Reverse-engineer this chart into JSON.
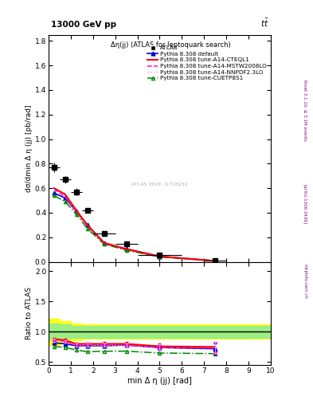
{
  "title": "13000 GeV pp",
  "inner_title": "Δη(jj) (ATLAS for leptoquark search)",
  "ylabel_main": "dσ/dmin Δ η (jj) [pb/rad]",
  "ylabel_ratio": "Ratio to ATLAS",
  "xlabel": "min Δ η (jj) [rad]",
  "right_label1": "Rivet 3.1.10; ≥ 3.1M events",
  "right_label2": "[arXiv:1306.3436]",
  "right_label3": "mcplots.cern.ch",
  "data_x": [
    0.25,
    0.75,
    1.25,
    1.75,
    2.5,
    3.5,
    5.0,
    7.5
  ],
  "data_y": [
    0.77,
    0.67,
    0.57,
    0.42,
    0.23,
    0.145,
    0.055,
    0.01
  ],
  "data_xerr": [
    0.25,
    0.25,
    0.25,
    0.25,
    0.5,
    0.5,
    1.0,
    0.5
  ],
  "data_yerr": [
    0.04,
    0.03,
    0.03,
    0.02,
    0.015,
    0.01,
    0.005,
    0.002
  ],
  "mc_x": [
    0.25,
    0.75,
    1.25,
    1.75,
    2.5,
    3.5,
    5.0,
    7.5
  ],
  "default_y": [
    0.56,
    0.52,
    0.41,
    0.3,
    0.155,
    0.105,
    0.045,
    0.008
  ],
  "cteql1_y": [
    0.6,
    0.55,
    0.42,
    0.3,
    0.155,
    0.105,
    0.045,
    0.008
  ],
  "mstw_y": [
    0.59,
    0.53,
    0.41,
    0.29,
    0.15,
    0.1,
    0.042,
    0.007
  ],
  "nnpdf_y": [
    0.59,
    0.54,
    0.41,
    0.295,
    0.152,
    0.102,
    0.043,
    0.008
  ],
  "cuetp_y": [
    0.54,
    0.49,
    0.39,
    0.27,
    0.145,
    0.095,
    0.04,
    0.007
  ],
  "ratio_default_y": [
    0.82,
    0.8,
    0.77,
    0.77,
    0.77,
    0.78,
    0.74,
    0.72
  ],
  "ratio_cteql1_y": [
    0.88,
    0.86,
    0.8,
    0.8,
    0.8,
    0.8,
    0.76,
    0.75
  ],
  "ratio_mstw_y": [
    0.86,
    0.84,
    0.78,
    0.78,
    0.78,
    0.78,
    0.74,
    0.73
  ],
  "ratio_nnpdf_y": [
    0.86,
    0.84,
    0.78,
    0.78,
    0.78,
    0.78,
    0.75,
    0.74
  ],
  "ratio_cuetp_y": [
    0.76,
    0.74,
    0.7,
    0.67,
    0.68,
    0.68,
    0.65,
    0.64
  ],
  "band_x": [
    0.0,
    0.5,
    1.0,
    1.5,
    2.0,
    3.0,
    4.0,
    6.0,
    8.0,
    10.0
  ],
  "band_green_lo": [
    0.87,
    0.87,
    0.88,
    0.9,
    0.9,
    0.9,
    0.9,
    0.9,
    0.9,
    0.9
  ],
  "band_green_hi": [
    1.13,
    1.13,
    1.12,
    1.1,
    1.1,
    1.1,
    1.1,
    1.1,
    1.1,
    1.1
  ],
  "band_yellow_lo": [
    0.75,
    0.78,
    0.82,
    0.86,
    0.88,
    0.88,
    0.88,
    0.88,
    0.88,
    0.88
  ],
  "band_yellow_hi": [
    1.25,
    1.22,
    1.18,
    1.14,
    1.12,
    1.12,
    1.12,
    1.12,
    1.12,
    1.12
  ],
  "color_data": "#000000",
  "color_default": "#0000cc",
  "color_cteql1": "#ff0000",
  "color_mstw": "#ff00ff",
  "color_nnpdf": "#ff88ff",
  "color_cuetp": "#008800",
  "ylim_main": [
    0.0,
    1.85
  ],
  "ylim_ratio": [
    0.45,
    2.15
  ],
  "xlim": [
    0.0,
    10.0
  ],
  "yticks_main": [
    0.0,
    0.2,
    0.4,
    0.6,
    0.8,
    1.0,
    1.2,
    1.4,
    1.6,
    1.8
  ],
  "yticks_ratio": [
    0.5,
    1.0,
    1.5,
    2.0
  ],
  "xticks": [
    0,
    1,
    2,
    3,
    4,
    5,
    6,
    7,
    8,
    9,
    10
  ],
  "legend_labels": [
    "ATLAS",
    "Pythia 8.308 default",
    "Pythia 8.308 tune-A14-CTEQL1",
    "Pythia 8.308 tune-A14-MSTW2008LO",
    "Pythia 8.308 tune-A14-NNPDF2.3LO",
    "Pythia 8.308 tune-CUETP8S1"
  ],
  "watermark": "ATLAS 2019  I1718132"
}
